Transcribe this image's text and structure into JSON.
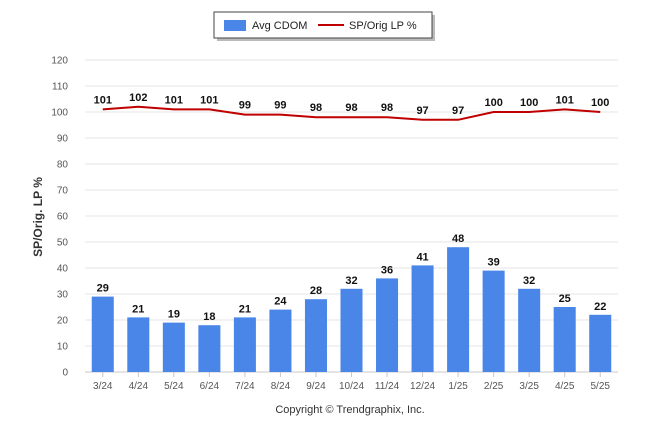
{
  "chart_data": {
    "type": "bar",
    "categories": [
      "3/24",
      "4/24",
      "5/24",
      "6/24",
      "7/24",
      "8/24",
      "9/24",
      "10/24",
      "11/24",
      "12/24",
      "1/25",
      "2/25",
      "3/25",
      "4/25",
      "5/25"
    ],
    "series": [
      {
        "name": "Avg CDOM",
        "type": "bar",
        "color": "#4a86e8",
        "values": [
          29,
          21,
          19,
          18,
          21,
          24,
          28,
          32,
          36,
          41,
          48,
          39,
          32,
          25,
          22
        ]
      },
      {
        "name": "SP/Orig LP %",
        "type": "line",
        "color": "#c00000",
        "values": [
          101,
          102,
          101,
          101,
          99,
          99,
          98,
          98,
          98,
          97,
          97,
          100,
          100,
          101,
          100
        ]
      }
    ],
    "ylabel": "SP/Orig. LP %",
    "ylim": [
      0,
      120
    ],
    "yticks": [
      0,
      10,
      20,
      30,
      40,
      50,
      60,
      70,
      80,
      90,
      100,
      110,
      120
    ],
    "grid": true,
    "legend_position": "top-center"
  },
  "footer": {
    "copyright": "Copyright © Trendgraphix, Inc."
  }
}
